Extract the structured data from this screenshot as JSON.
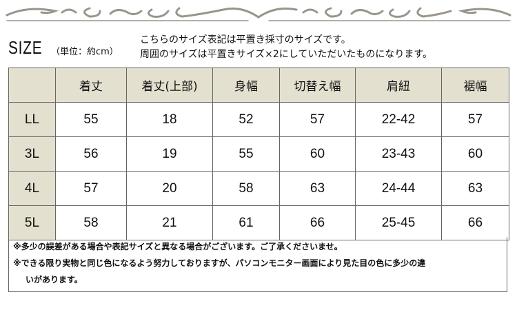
{
  "header": {
    "title": "SIZE",
    "unit": "（単位：約cm）",
    "desc_lines": [
      "こちらのサイズ表記は平置き採寸のサイズです。",
      "周囲のサイズは平置きサイズ×2にしていただいたものになります。"
    ]
  },
  "colors": {
    "header_bg": "#e4e0cf",
    "ornament": "#9a958c"
  },
  "table": {
    "columns": [
      "",
      "着丈",
      "着丈(上部)",
      "身幅",
      "切替え幅",
      "肩紐",
      "裾幅"
    ],
    "rows": [
      {
        "size": "LL",
        "values": [
          "55",
          "18",
          "52",
          "57",
          "22-42",
          "57"
        ]
      },
      {
        "size": "3L",
        "values": [
          "56",
          "19",
          "55",
          "60",
          "23-43",
          "60"
        ]
      },
      {
        "size": "4L",
        "values": [
          "57",
          "20",
          "58",
          "63",
          "24-44",
          "63"
        ]
      },
      {
        "size": "5L",
        "values": [
          "58",
          "21",
          "61",
          "66",
          "25-45",
          "66"
        ]
      }
    ]
  },
  "notes": [
    "※多少の誤差がある場合や表記サイズと異なる場合がございます。ご了承くださいませ。",
    "※できる限り実物と同じ色になるよう努力しておりますが、パソコンモニター画面により見た目の色に多少の違",
    "いがあります。"
  ]
}
